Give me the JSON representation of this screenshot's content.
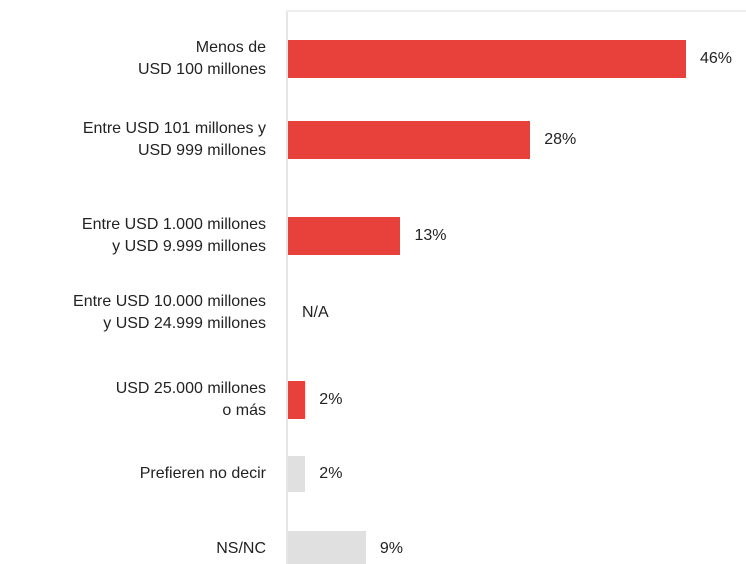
{
  "chart_data": {
    "type": "bar",
    "orientation": "horizontal",
    "categories": [
      "Menos de\nUSD 100 millones",
      "Entre USD 101 millones y\nUSD 999 millones",
      "Entre USD 1.000 millones\ny USD 9.999 millones",
      "Entre USD 10.000 millones\ny USD 24.999 millones",
      "USD 25.000 millones\no más",
      "Prefieren no decir",
      "NS/NC"
    ],
    "values": [
      46,
      28,
      13,
      null,
      2,
      2,
      9
    ],
    "value_labels": [
      "46%",
      "28%",
      "13%",
      "N/A",
      "2%",
      "2%",
      "9%"
    ],
    "colors": [
      "#e8403a",
      "#e8403a",
      "#e8403a",
      "#e8403a",
      "#e8403a",
      "#e0e0e0",
      "#e0e0e0"
    ]
  }
}
